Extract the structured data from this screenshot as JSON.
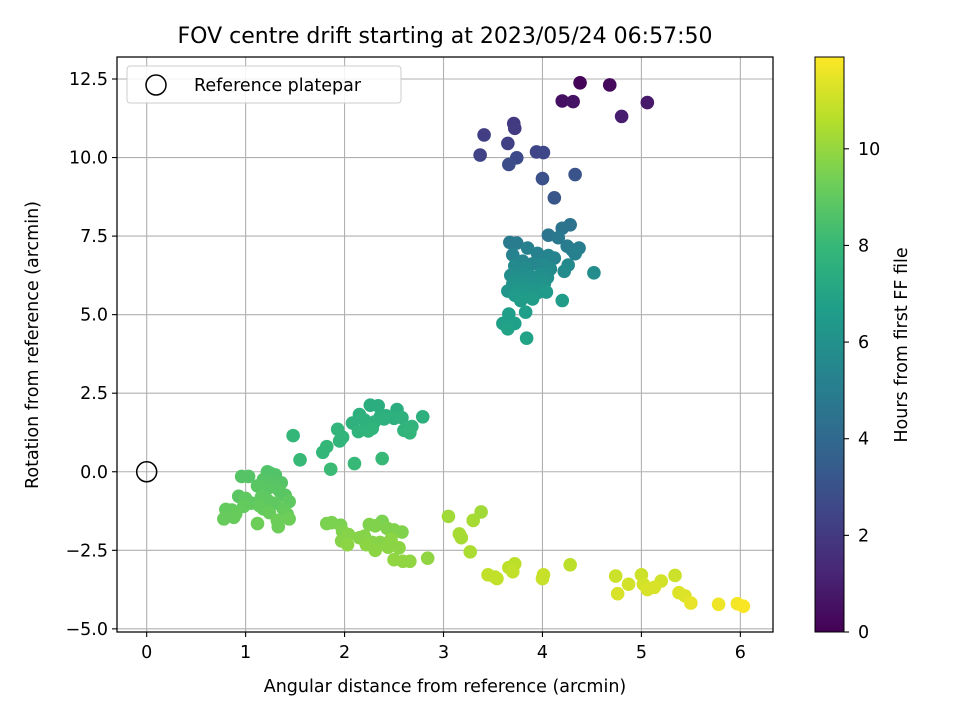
{
  "chart_data": {
    "type": "scatter",
    "title": "FOV centre drift starting at 2023/05/24 06:57:50",
    "xlabel": "Angular distance from reference (arcmin)",
    "ylabel": "Rotation from reference (arcmin)",
    "xlim": [
      -0.3,
      6.33
    ],
    "ylim": [
      -5.1,
      13.2
    ],
    "x_ticks": [
      0,
      1,
      2,
      3,
      4,
      5,
      6
    ],
    "y_ticks": [
      -5.0,
      -2.5,
      0.0,
      2.5,
      5.0,
      7.5,
      10.0,
      12.5
    ],
    "x_tick_labels": [
      "0",
      "1",
      "2",
      "3",
      "4",
      "5",
      "6"
    ],
    "y_tick_labels": [
      "−5.0",
      "−2.5",
      "0.0",
      "2.5",
      "5.0",
      "7.5",
      "10.0",
      "12.5"
    ],
    "grid": true,
    "legend": {
      "position": "top-left",
      "label": "Reference platepar"
    },
    "reference_point": {
      "x": 0,
      "y": 0
    },
    "colorbar": {
      "label": "Hours from first FF file",
      "min": 0,
      "max": 11.9,
      "ticks": [
        0,
        2,
        4,
        6,
        8,
        10
      ],
      "tick_labels": [
        "0",
        "2",
        "4",
        "6",
        "8",
        "10"
      ],
      "colormap": "viridis"
    },
    "colors": {
      "viridis": [
        "#440154",
        "#482878",
        "#3e4989",
        "#31688e",
        "#26828e",
        "#1f9e89",
        "#35b779",
        "#6ece58",
        "#b5de2b",
        "#fde725"
      ],
      "grid": "#b0b0b0"
    },
    "points": [
      [
        4.38,
        12.38,
        0.1
      ],
      [
        4.68,
        12.31,
        0.3
      ],
      [
        4.2,
        11.8,
        0.5
      ],
      [
        4.31,
        11.78,
        0.6
      ],
      [
        5.06,
        11.75,
        0.8
      ],
      [
        4.8,
        11.31,
        1.0
      ],
      [
        3.71,
        11.08,
        2.0
      ],
      [
        3.72,
        10.93,
        2.1
      ],
      [
        3.41,
        10.72,
        2.2
      ],
      [
        3.65,
        10.45,
        2.3
      ],
      [
        3.37,
        10.08,
        2.4
      ],
      [
        3.94,
        10.18,
        2.5
      ],
      [
        4.01,
        10.16,
        2.6
      ],
      [
        3.74,
        9.99,
        2.7
      ],
      [
        3.66,
        9.78,
        2.8
      ],
      [
        4.0,
        9.33,
        3.0
      ],
      [
        4.33,
        9.46,
        3.1
      ],
      [
        4.12,
        8.72,
        3.2
      ],
      [
        4.28,
        7.86,
        4.5
      ],
      [
        4.2,
        7.75,
        4.6
      ],
      [
        4.06,
        7.53,
        4.7
      ],
      [
        4.16,
        7.45,
        4.8
      ],
      [
        3.67,
        7.3,
        4.9
      ],
      [
        3.74,
        7.28,
        5.0
      ],
      [
        4.25,
        7.18,
        5.0
      ],
      [
        4.3,
        7.06,
        5.1
      ],
      [
        4.37,
        7.12,
        5.1
      ],
      [
        4.33,
        6.94,
        5.2
      ],
      [
        3.85,
        7.12,
        5.2
      ],
      [
        3.7,
        6.9,
        5.3
      ],
      [
        3.95,
        6.95,
        5.3
      ],
      [
        4.06,
        6.88,
        5.4
      ],
      [
        4.12,
        6.8,
        5.4
      ],
      [
        3.8,
        6.7,
        5.5
      ],
      [
        3.9,
        6.62,
        5.5
      ],
      [
        4.0,
        6.6,
        5.6
      ],
      [
        3.72,
        6.55,
        5.6
      ],
      [
        4.26,
        6.58,
        5.6
      ],
      [
        3.83,
        6.48,
        5.7
      ],
      [
        4.08,
        6.45,
        5.7
      ],
      [
        4.22,
        6.38,
        5.7
      ],
      [
        4.52,
        6.33,
        5.8
      ],
      [
        3.68,
        6.25,
        5.8
      ],
      [
        3.78,
        6.3,
        5.8
      ],
      [
        3.88,
        6.22,
        5.9
      ],
      [
        3.98,
        6.28,
        5.9
      ],
      [
        4.05,
        6.18,
        5.9
      ],
      [
        3.75,
        6.12,
        6.0
      ],
      [
        3.85,
        6.05,
        6.0
      ],
      [
        3.95,
        6.08,
        6.0
      ],
      [
        4.02,
        6.0,
        6.1
      ],
      [
        3.7,
        5.98,
        6.1
      ],
      [
        3.8,
        5.92,
        6.1
      ],
      [
        3.9,
        5.88,
        6.2
      ],
      [
        4.0,
        5.85,
        6.2
      ],
      [
        3.65,
        5.75,
        6.2
      ],
      [
        3.75,
        5.78,
        6.3
      ],
      [
        3.85,
        5.72,
        6.3
      ],
      [
        3.95,
        5.7,
        6.3
      ],
      [
        4.04,
        5.72,
        6.4
      ],
      [
        3.72,
        5.62,
        6.4
      ],
      [
        3.82,
        5.58,
        6.4
      ],
      [
        3.78,
        5.45,
        6.5
      ],
      [
        3.9,
        5.5,
        6.5
      ],
      [
        4.2,
        5.45,
        6.5
      ],
      [
        3.83,
        5.08,
        6.6
      ],
      [
        3.66,
        5.02,
        6.6
      ],
      [
        3.6,
        4.72,
        6.7
      ],
      [
        3.72,
        4.72,
        6.7
      ],
      [
        3.65,
        4.55,
        6.8
      ],
      [
        3.84,
        4.25,
        6.8
      ],
      [
        2.26,
        2.12,
        7.4
      ],
      [
        2.34,
        2.1,
        7.4
      ],
      [
        2.53,
        1.98,
        7.4
      ],
      [
        2.15,
        1.82,
        7.5
      ],
      [
        2.36,
        1.75,
        7.5
      ],
      [
        2.42,
        1.78,
        7.5
      ],
      [
        2.5,
        1.7,
        7.5
      ],
      [
        2.79,
        1.75,
        7.5
      ],
      [
        2.58,
        1.72,
        7.6
      ],
      [
        2.2,
        1.65,
        7.6
      ],
      [
        2.3,
        1.58,
        7.6
      ],
      [
        2.08,
        1.55,
        7.6
      ],
      [
        2.4,
        1.68,
        7.6
      ],
      [
        2.68,
        1.44,
        7.7
      ],
      [
        2.28,
        1.38,
        7.7
      ],
      [
        2.6,
        1.32,
        7.7
      ],
      [
        2.14,
        1.28,
        7.7
      ],
      [
        2.24,
        1.3,
        7.7
      ],
      [
        2.66,
        1.24,
        7.8
      ],
      [
        1.93,
        1.35,
        7.8
      ],
      [
        1.98,
        1.1,
        7.8
      ],
      [
        1.95,
        0.98,
        7.8
      ],
      [
        1.48,
        1.15,
        7.9
      ],
      [
        1.82,
        0.8,
        7.9
      ],
      [
        1.78,
        0.62,
        7.9
      ],
      [
        1.55,
        0.38,
        8.0
      ],
      [
        2.38,
        0.42,
        8.0
      ],
      [
        2.1,
        0.26,
        8.0
      ],
      [
        1.86,
        0.08,
        8.1
      ],
      [
        1.22,
        0.0,
        8.6
      ],
      [
        1.25,
        -0.05,
        8.6
      ],
      [
        1.3,
        -0.1,
        8.6
      ],
      [
        0.96,
        -0.15,
        8.7
      ],
      [
        1.03,
        -0.15,
        8.7
      ],
      [
        1.18,
        -0.25,
        8.7
      ],
      [
        1.28,
        -0.35,
        8.7
      ],
      [
        1.36,
        -0.35,
        8.7
      ],
      [
        1.12,
        -0.45,
        8.8
      ],
      [
        1.24,
        -0.5,
        8.8
      ],
      [
        1.34,
        -0.6,
        8.8
      ],
      [
        1.4,
        -0.75,
        8.8
      ],
      [
        0.93,
        -0.78,
        8.8
      ],
      [
        1.0,
        -0.85,
        8.9
      ],
      [
        1.16,
        -0.8,
        8.9
      ],
      [
        1.22,
        -0.9,
        8.9
      ],
      [
        1.44,
        -0.95,
        8.9
      ],
      [
        1.06,
        -1.0,
        8.9
      ],
      [
        1.3,
        -1.0,
        8.9
      ],
      [
        0.98,
        -1.1,
        9.0
      ],
      [
        1.14,
        -1.08,
        9.0
      ],
      [
        0.8,
        -1.2,
        9.0
      ],
      [
        0.86,
        -1.22,
        9.0
      ],
      [
        1.18,
        -1.18,
        9.0
      ],
      [
        1.38,
        -1.18,
        9.0
      ],
      [
        0.9,
        -1.34,
        9.1
      ],
      [
        1.24,
        -1.3,
        9.1
      ],
      [
        1.42,
        -1.35,
        9.1
      ],
      [
        0.78,
        -1.5,
        9.1
      ],
      [
        0.88,
        -1.45,
        9.1
      ],
      [
        1.32,
        -1.55,
        9.2
      ],
      [
        1.44,
        -1.5,
        9.2
      ],
      [
        1.12,
        -1.65,
        9.2
      ],
      [
        1.33,
        -1.75,
        9.2
      ],
      [
        1.82,
        -1.65,
        9.5
      ],
      [
        1.87,
        -1.62,
        9.5
      ],
      [
        1.96,
        -1.7,
        9.5
      ],
      [
        2.38,
        -1.58,
        9.5
      ],
      [
        2.25,
        -1.68,
        9.6
      ],
      [
        2.31,
        -1.72,
        9.6
      ],
      [
        2.43,
        -1.8,
        9.6
      ],
      [
        2.5,
        -1.85,
        9.6
      ],
      [
        2.58,
        -1.92,
        9.6
      ],
      [
        1.98,
        -1.9,
        9.6
      ],
      [
        2.04,
        -2.0,
        9.7
      ],
      [
        2.2,
        -2.05,
        9.7
      ],
      [
        2.15,
        -2.1,
        9.7
      ],
      [
        1.97,
        -2.2,
        9.7
      ],
      [
        2.28,
        -2.25,
        9.7
      ],
      [
        2.36,
        -2.25,
        9.7
      ],
      [
        2.47,
        -2.15,
        9.8
      ],
      [
        2.03,
        -2.32,
        9.8
      ],
      [
        2.22,
        -2.32,
        9.8
      ],
      [
        2.44,
        -2.4,
        9.8
      ],
      [
        2.55,
        -2.42,
        9.8
      ],
      [
        2.31,
        -2.5,
        9.8
      ],
      [
        2.5,
        -2.8,
        9.9
      ],
      [
        2.59,
        -2.85,
        9.9
      ],
      [
        2.66,
        -2.85,
        9.9
      ],
      [
        2.84,
        -2.75,
        9.9
      ],
      [
        3.05,
        -1.42,
        10.2
      ],
      [
        3.38,
        -1.28,
        10.2
      ],
      [
        3.3,
        -1.55,
        10.3
      ],
      [
        3.16,
        -1.98,
        10.3
      ],
      [
        3.18,
        -2.1,
        10.3
      ],
      [
        3.27,
        -2.55,
        10.4
      ],
      [
        3.72,
        -2.93,
        10.7
      ],
      [
        3.66,
        -3.05,
        10.7
      ],
      [
        4.28,
        -2.96,
        10.7
      ],
      [
        3.7,
        -3.18,
        10.8
      ],
      [
        3.45,
        -3.28,
        10.8
      ],
      [
        3.52,
        -3.35,
        10.8
      ],
      [
        3.54,
        -3.4,
        10.8
      ],
      [
        4.01,
        -3.28,
        10.9
      ],
      [
        4.0,
        -3.4,
        10.9
      ],
      [
        4.74,
        -3.32,
        11.0
      ],
      [
        5.0,
        -3.28,
        11.0
      ],
      [
        5.34,
        -3.3,
        11.0
      ],
      [
        5.2,
        -3.48,
        11.1
      ],
      [
        4.87,
        -3.58,
        11.1
      ],
      [
        5.02,
        -3.58,
        11.1
      ],
      [
        5.13,
        -3.68,
        11.2
      ],
      [
        5.06,
        -3.75,
        11.2
      ],
      [
        4.76,
        -3.88,
        11.2
      ],
      [
        5.38,
        -3.85,
        11.3
      ],
      [
        5.44,
        -3.95,
        11.3
      ],
      [
        5.5,
        -4.18,
        11.5
      ],
      [
        5.78,
        -4.22,
        11.6
      ],
      [
        5.97,
        -4.2,
        11.7
      ],
      [
        6.03,
        -4.28,
        11.8
      ]
    ]
  }
}
